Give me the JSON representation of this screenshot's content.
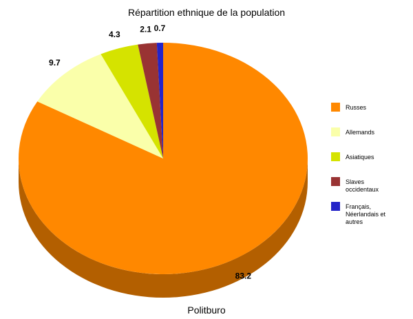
{
  "chart_data": {
    "type": "pie",
    "title": "Répartition ethnique de la population",
    "x_label": "Politburo",
    "categories": [
      "Russes",
      "Allemands",
      "Asiatiques",
      "Slaves occidentaux",
      "Français, Néerlandais et autres"
    ],
    "values": [
      83.2,
      9.7,
      4.3,
      2.1,
      0.7
    ],
    "colors": [
      "#ff8800",
      "#faffaa",
      "#d5e300",
      "#993333",
      "#2424c8"
    ],
    "legend": "right"
  }
}
